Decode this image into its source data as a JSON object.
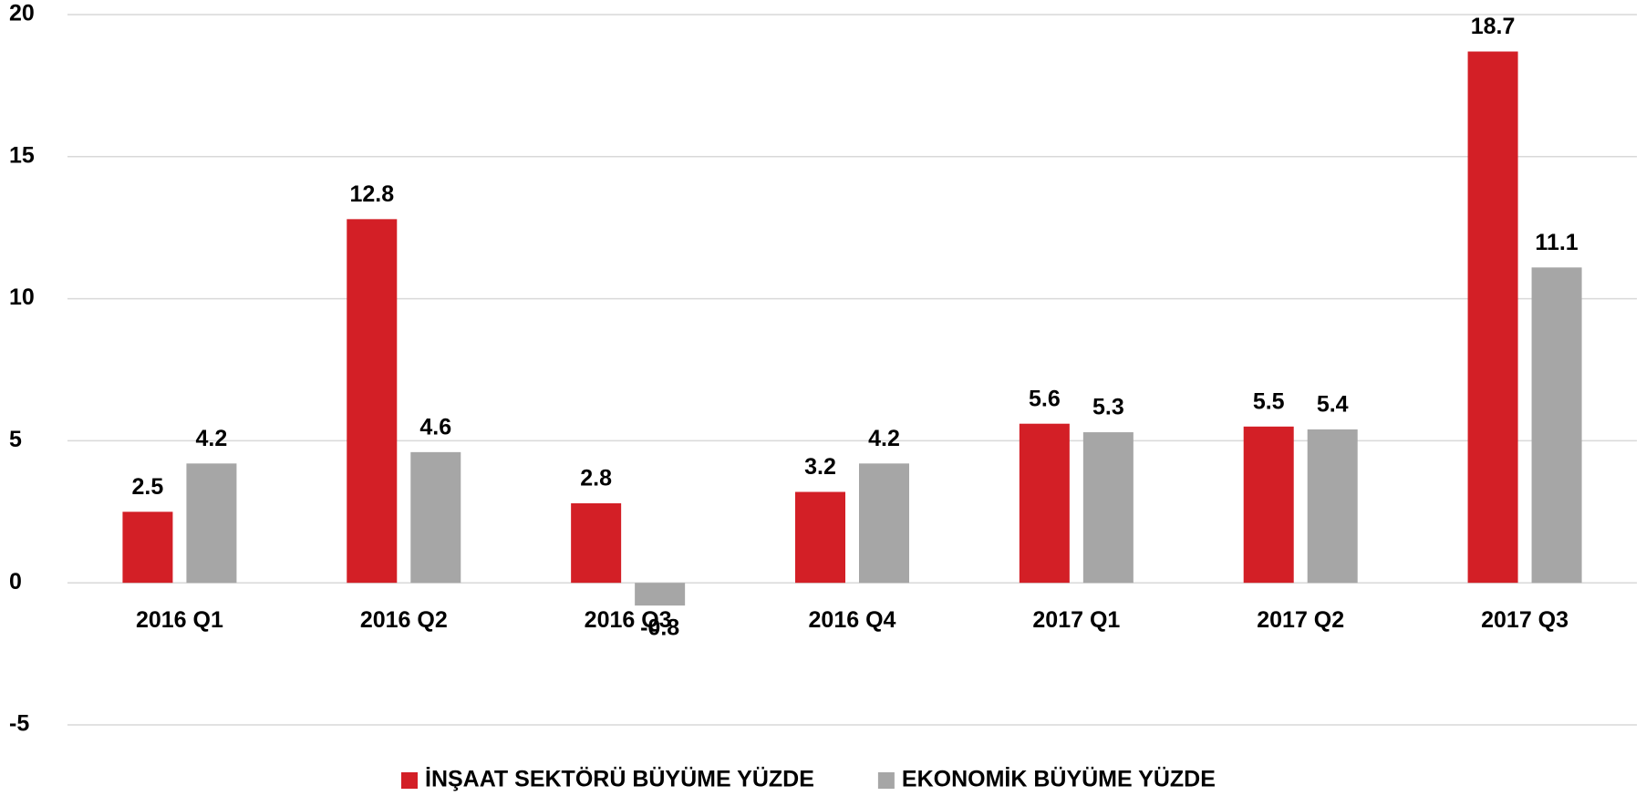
{
  "chart_data": {
    "type": "bar",
    "categories": [
      "2016 Q1",
      "2016 Q2",
      "2016 Q3",
      "2016 Q4",
      "2017 Q1",
      "2017 Q2",
      "2017 Q3"
    ],
    "series": [
      {
        "name": "İNŞAAT SEKTÖRÜ BÜYÜME YÜZDE",
        "color": "#d31f26",
        "values": [
          2.5,
          12.8,
          2.8,
          3.2,
          5.6,
          5.5,
          18.7
        ]
      },
      {
        "name": "EKONOMİK BÜYÜME YÜZDE",
        "color": "#a6a6a6",
        "values": [
          4.2,
          4.6,
          -0.8,
          4.2,
          5.3,
          5.4,
          11.1
        ]
      }
    ],
    "ylim": [
      -5,
      20
    ],
    "yticks": [
      -5,
      0,
      5,
      10,
      15,
      20
    ],
    "grid": true,
    "legend": "bottom"
  }
}
